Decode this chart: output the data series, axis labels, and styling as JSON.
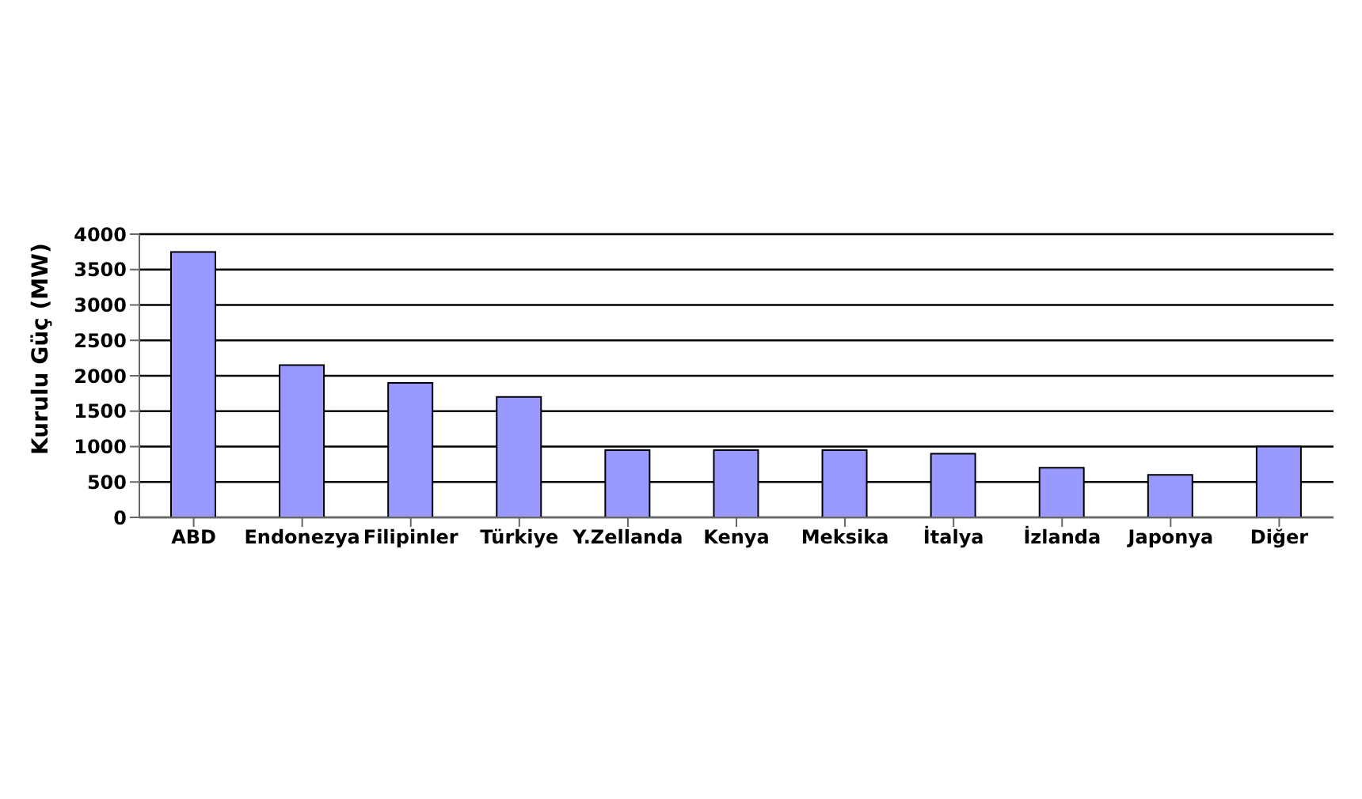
{
  "chart_data": {
    "type": "bar",
    "ylabel": "Kurulu Güç (MW)",
    "categories": [
      "ABD",
      "Endonezya",
      "Filipinler",
      "Türkiye",
      "Y.Zellanda",
      "Kenya",
      "Meksika",
      "İtalya",
      "İzlanda",
      "Japonya",
      "Diğer"
    ],
    "values": [
      3750,
      2150,
      1900,
      1700,
      950,
      950,
      950,
      900,
      700,
      600,
      1000
    ],
    "color": "#9999ff",
    "ylim": [
      0,
      4000
    ],
    "yticks": [
      0,
      500,
      1000,
      1500,
      2000,
      2500,
      3000,
      3500,
      4000
    ],
    "grid": "y"
  }
}
